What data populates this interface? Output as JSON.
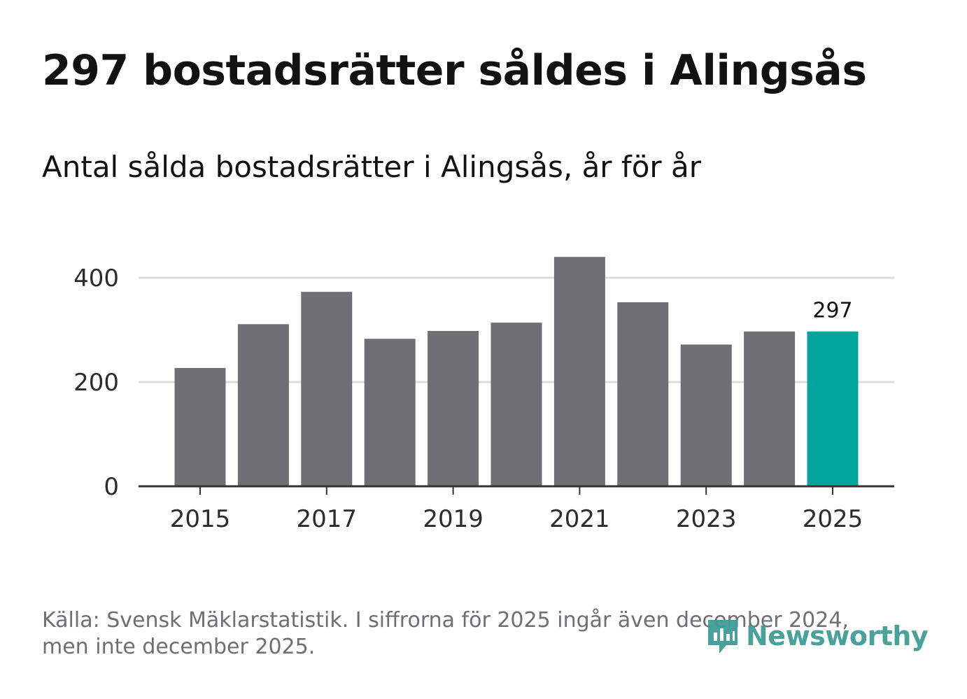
{
  "title": "297 bostadsrätter såldes i Alingsås",
  "subtitle": "Antal sålda bostadsrätter i Alingsås, år för år",
  "source": {
    "line1": "Källa: Svensk Mäklarstatistik. I siffrorna för 2025 ingår även december 2024,",
    "line2": "men inte december 2025."
  },
  "brand": {
    "name": "Newsworthy",
    "logo_icon": "newsworthy-bar-chart-icon"
  },
  "colors": {
    "bar": "#706f75",
    "highlight": "#00a59b",
    "grid": "#dcdcdc",
    "axis": "#333333",
    "brand": "#3f9d95"
  },
  "chart_data": {
    "type": "bar",
    "title": "297 bostadsrätter såldes i Alingsås",
    "subtitle": "Antal sålda bostadsrätter i Alingsås, år för år",
    "xlabel": "",
    "ylabel": "",
    "categories": [
      "2015",
      "2016",
      "2017",
      "2018",
      "2019",
      "2020",
      "2021",
      "2022",
      "2023",
      "2024",
      "2025"
    ],
    "values": [
      227,
      311,
      373,
      283,
      298,
      314,
      440,
      353,
      272,
      297,
      297
    ],
    "highlight_index": 10,
    "highlight_label": "297",
    "ylim": [
      0,
      450
    ],
    "yticks": [
      0,
      200,
      400
    ],
    "xtick_labels": [
      "2015",
      "2017",
      "2019",
      "2021",
      "2023",
      "2025"
    ],
    "grid": true,
    "legend": "none"
  }
}
